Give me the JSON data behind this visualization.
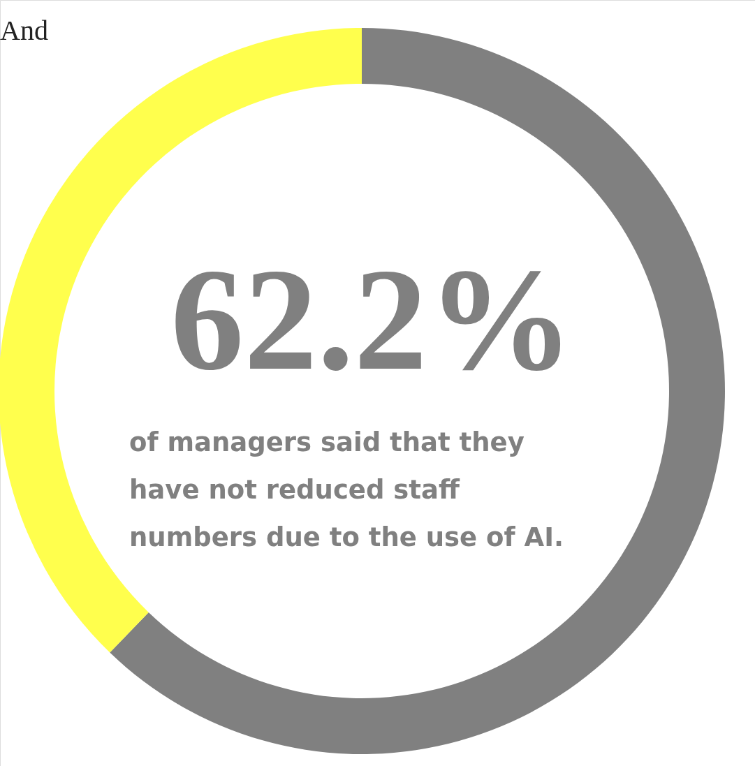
{
  "chart_data": {
    "type": "donut",
    "categories": [
      null,
      null
    ],
    "values": [
      62.2,
      37.8
    ],
    "colors": [
      "#808080",
      "#ffff4d"
    ],
    "value_labels": [
      "62.2%",
      null
    ],
    "annotations": [
      "And",
      "of managers said that they\nhave not reduced staff\nnumbers due to the use of AI."
    ]
  }
}
